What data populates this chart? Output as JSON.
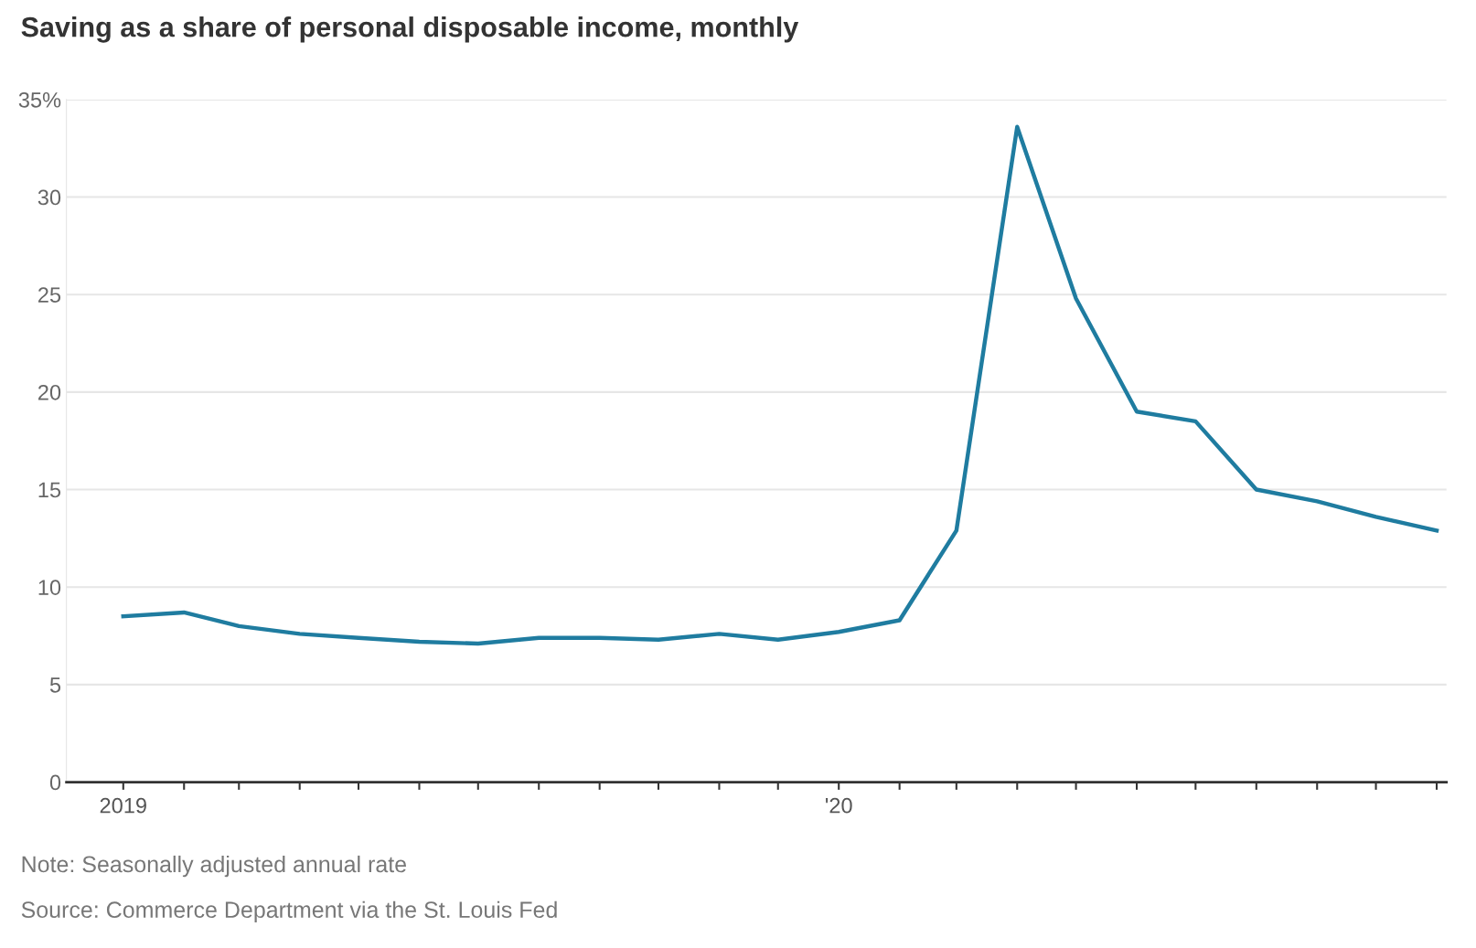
{
  "chart_data": {
    "type": "line",
    "title": "Saving as a share of personal disposable income, monthly",
    "x": [
      "2019-01",
      "2019-02",
      "2019-03",
      "2019-04",
      "2019-05",
      "2019-06",
      "2019-07",
      "2019-08",
      "2019-09",
      "2019-10",
      "2019-11",
      "2019-12",
      "2020-01",
      "2020-02",
      "2020-03",
      "2020-04",
      "2020-05",
      "2020-06",
      "2020-07",
      "2020-08",
      "2020-09",
      "2020-10",
      "2020-11"
    ],
    "series": [
      {
        "color": "#1f7ca0",
        "values": [
          8.5,
          8.7,
          8.0,
          7.6,
          7.4,
          7.2,
          7.1,
          7.4,
          7.4,
          7.3,
          7.6,
          7.3,
          7.7,
          8.3,
          12.9,
          33.6,
          24.8,
          19.0,
          18.5,
          15.0,
          14.4,
          13.6,
          12.9
        ]
      }
    ],
    "xlim": [
      "2018-12-03",
      "2020-11-06"
    ],
    "xticks": [
      {
        "value": "2019-01",
        "label": "2019"
      },
      {
        "value": "2019-02",
        "label": null
      },
      {
        "value": "2019-03",
        "label": null
      },
      {
        "value": "2019-04",
        "label": null
      },
      {
        "value": "2019-05",
        "label": null
      },
      {
        "value": "2019-06",
        "label": null
      },
      {
        "value": "2019-07",
        "label": null
      },
      {
        "value": "2019-08",
        "label": null
      },
      {
        "value": "2019-09",
        "label": null
      },
      {
        "value": "2019-10",
        "label": null
      },
      {
        "value": "2019-11",
        "label": null
      },
      {
        "value": "2019-12",
        "label": null
      },
      {
        "value": "2020-01",
        "label": "'20"
      },
      {
        "value": "2020-02",
        "label": null
      },
      {
        "value": "2020-03",
        "label": null
      },
      {
        "value": "2020-04",
        "label": null
      },
      {
        "value": "2020-05",
        "label": null
      },
      {
        "value": "2020-06",
        "label": null
      },
      {
        "value": "2020-07",
        "label": null
      },
      {
        "value": "2020-08",
        "label": null
      },
      {
        "value": "2020-09",
        "label": null
      },
      {
        "value": "2020-10",
        "label": null
      },
      {
        "value": "2020-11",
        "label": null
      }
    ],
    "ylim": [
      0,
      35
    ],
    "yticks": [
      0,
      5,
      10,
      15,
      20,
      25,
      30,
      {
        "value": 35,
        "label": "35%"
      }
    ],
    "grid": "y",
    "marker": "none",
    "line_style": "solid",
    "legend": false,
    "annotations": [
      "Note: Seasonally adjusted annual rate",
      "Source: Commerce Department via the St. Louis Fed"
    ]
  }
}
